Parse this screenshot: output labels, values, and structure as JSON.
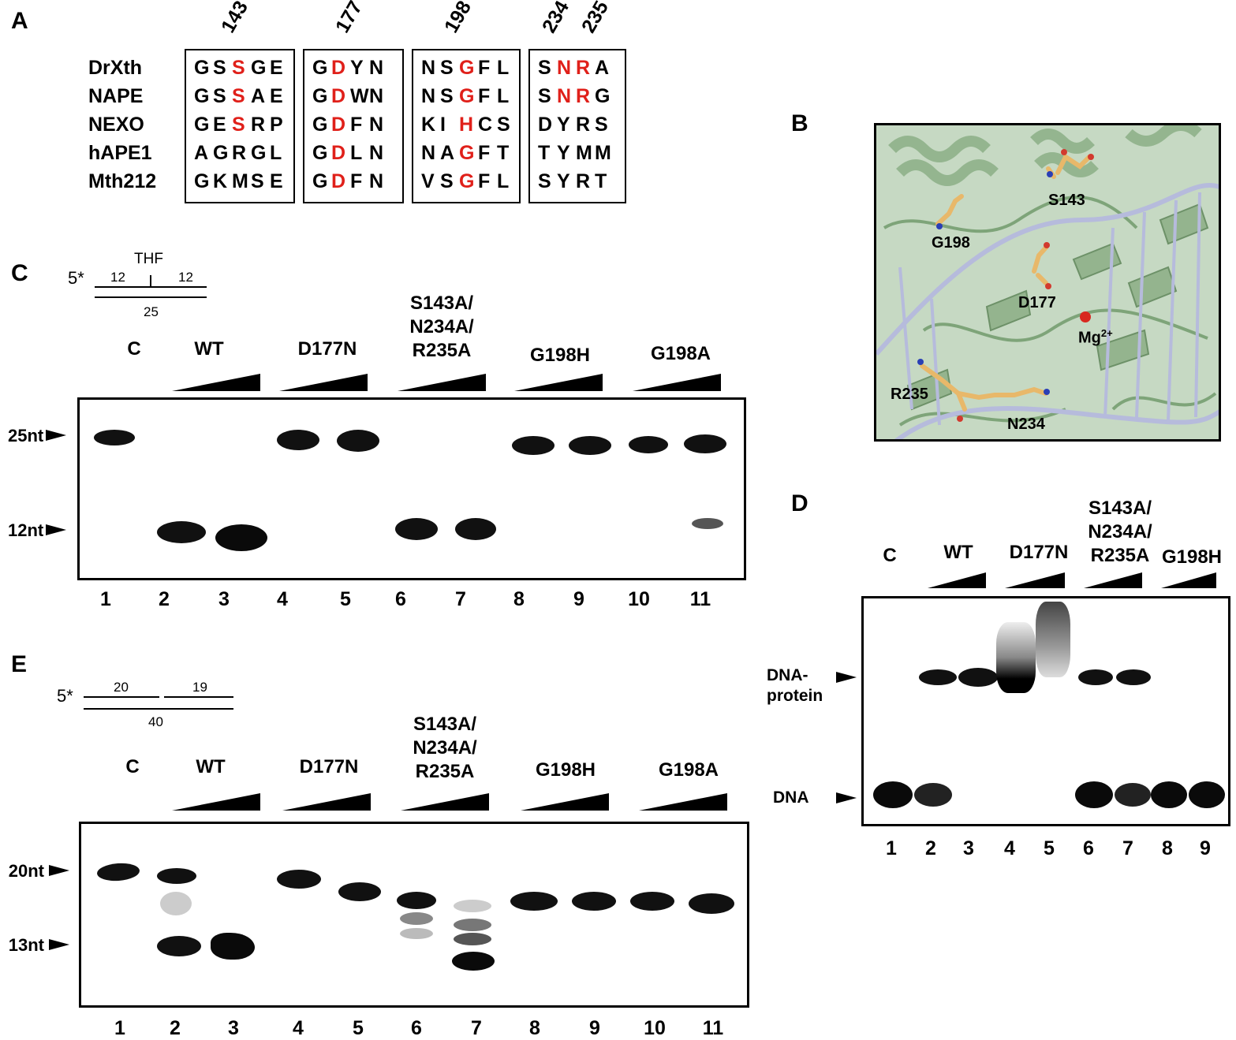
{
  "panelA": {
    "label": "A",
    "positions": [
      "143",
      "177",
      "198",
      "234",
      "235"
    ],
    "organisms": [
      "DrXth",
      "NAPE",
      "NEXO",
      "hAPE1",
      "Mth212"
    ],
    "blocks": [
      {
        "rows": [
          [
            "G",
            "S",
            "S",
            "G",
            "E"
          ],
          [
            "G",
            "S",
            "S",
            "A",
            "E"
          ],
          [
            "G",
            "E",
            "S",
            "R",
            "P"
          ],
          [
            "A",
            "G",
            "R",
            "G",
            "L"
          ],
          [
            "G",
            "K",
            "M",
            "S",
            "E"
          ]
        ],
        "red": [
          [
            2
          ],
          [
            2
          ],
          [
            2
          ],
          [],
          []
        ]
      },
      {
        "rows": [
          [
            "G",
            "D",
            "Y",
            "N"
          ],
          [
            "G",
            "D",
            "W",
            "N"
          ],
          [
            "G",
            "D",
            "F",
            "N"
          ],
          [
            "G",
            "D",
            "L",
            "N"
          ],
          [
            "G",
            "D",
            "F",
            "N"
          ]
        ],
        "red": [
          [
            1
          ],
          [
            1
          ],
          [
            1
          ],
          [
            1
          ],
          [
            1
          ]
        ]
      },
      {
        "rows": [
          [
            "N",
            "S",
            "G",
            "F",
            "L"
          ],
          [
            "N",
            "S",
            "G",
            "F",
            "L"
          ],
          [
            "K",
            "I",
            "H",
            "C",
            "S"
          ],
          [
            "N",
            "A",
            "G",
            "F",
            "T"
          ],
          [
            "V",
            "S",
            "G",
            "F",
            "L"
          ]
        ],
        "red": [
          [
            2
          ],
          [
            2
          ],
          [
            2
          ],
          [
            2
          ],
          [
            2
          ]
        ]
      },
      {
        "rows": [
          [
            "S",
            "N",
            "R",
            "A"
          ],
          [
            "S",
            "N",
            "R",
            "G"
          ],
          [
            "D",
            "Y",
            "R",
            "S"
          ],
          [
            "T",
            "Y",
            "M",
            "M"
          ],
          [
            "S",
            "Y",
            "R",
            "T"
          ]
        ],
        "red": [
          [
            1,
            2
          ],
          [
            1,
            2
          ],
          [],
          [],
          []
        ]
      }
    ]
  },
  "panelB": {
    "label": "B",
    "residues": {
      "s143": "S143",
      "g198": "G198",
      "d177": "D177",
      "mg": "Mg",
      "mg_sup": "2+",
      "r235": "R235",
      "n234": "N234"
    }
  },
  "panelC": {
    "label": "C",
    "substrate": {
      "prefix": "5*",
      "thf": "THF",
      "left": "12",
      "right": "12",
      "bottom": "25"
    },
    "headers": {
      "c": "C",
      "wt": "WT",
      "d177n": "D177N",
      "triple_1": "S143A/",
      "triple_2": "N234A/",
      "triple_3": "R235A",
      "g198h": "G198H",
      "g198a": "G198A"
    },
    "markers": {
      "upper": "25nt",
      "lower": "12nt"
    },
    "lanes": [
      "1",
      "2",
      "3",
      "4",
      "5",
      "6",
      "7",
      "8",
      "9",
      "10",
      "11"
    ]
  },
  "panelD": {
    "label": "D",
    "headers": {
      "c": "C",
      "wt": "WT",
      "d177n": "D177N",
      "triple_1": "S143A/",
      "triple_2": "N234A/",
      "triple_3": "R235A",
      "g198h": "G198H"
    },
    "markers": {
      "complex_1": "DNA-",
      "complex_2": "protein",
      "free": "DNA"
    },
    "lanes": [
      "1",
      "2",
      "3",
      "4",
      "5",
      "6",
      "7",
      "8",
      "9"
    ]
  },
  "panelE": {
    "label": "E",
    "substrate": {
      "prefix": "5*",
      "left": "20",
      "right": "19",
      "bottom": "40"
    },
    "headers": {
      "c": "C",
      "wt": "WT",
      "d177n": "D177N",
      "triple_1": "S143A/",
      "triple_2": "N234A/",
      "triple_3": "R235A",
      "g198h": "G198H",
      "g198a": "G198A"
    },
    "markers": {
      "upper": "20nt",
      "lower": "13nt"
    },
    "lanes": [
      "1",
      "2",
      "3",
      "4",
      "5",
      "6",
      "7",
      "8",
      "9",
      "10",
      "11"
    ]
  },
  "colors": {
    "highlight": "#e0201a",
    "protein": "#a9c8a4",
    "dna": "#b8bcd9",
    "stick": "#e8b86a",
    "mg": "#d8281f"
  }
}
